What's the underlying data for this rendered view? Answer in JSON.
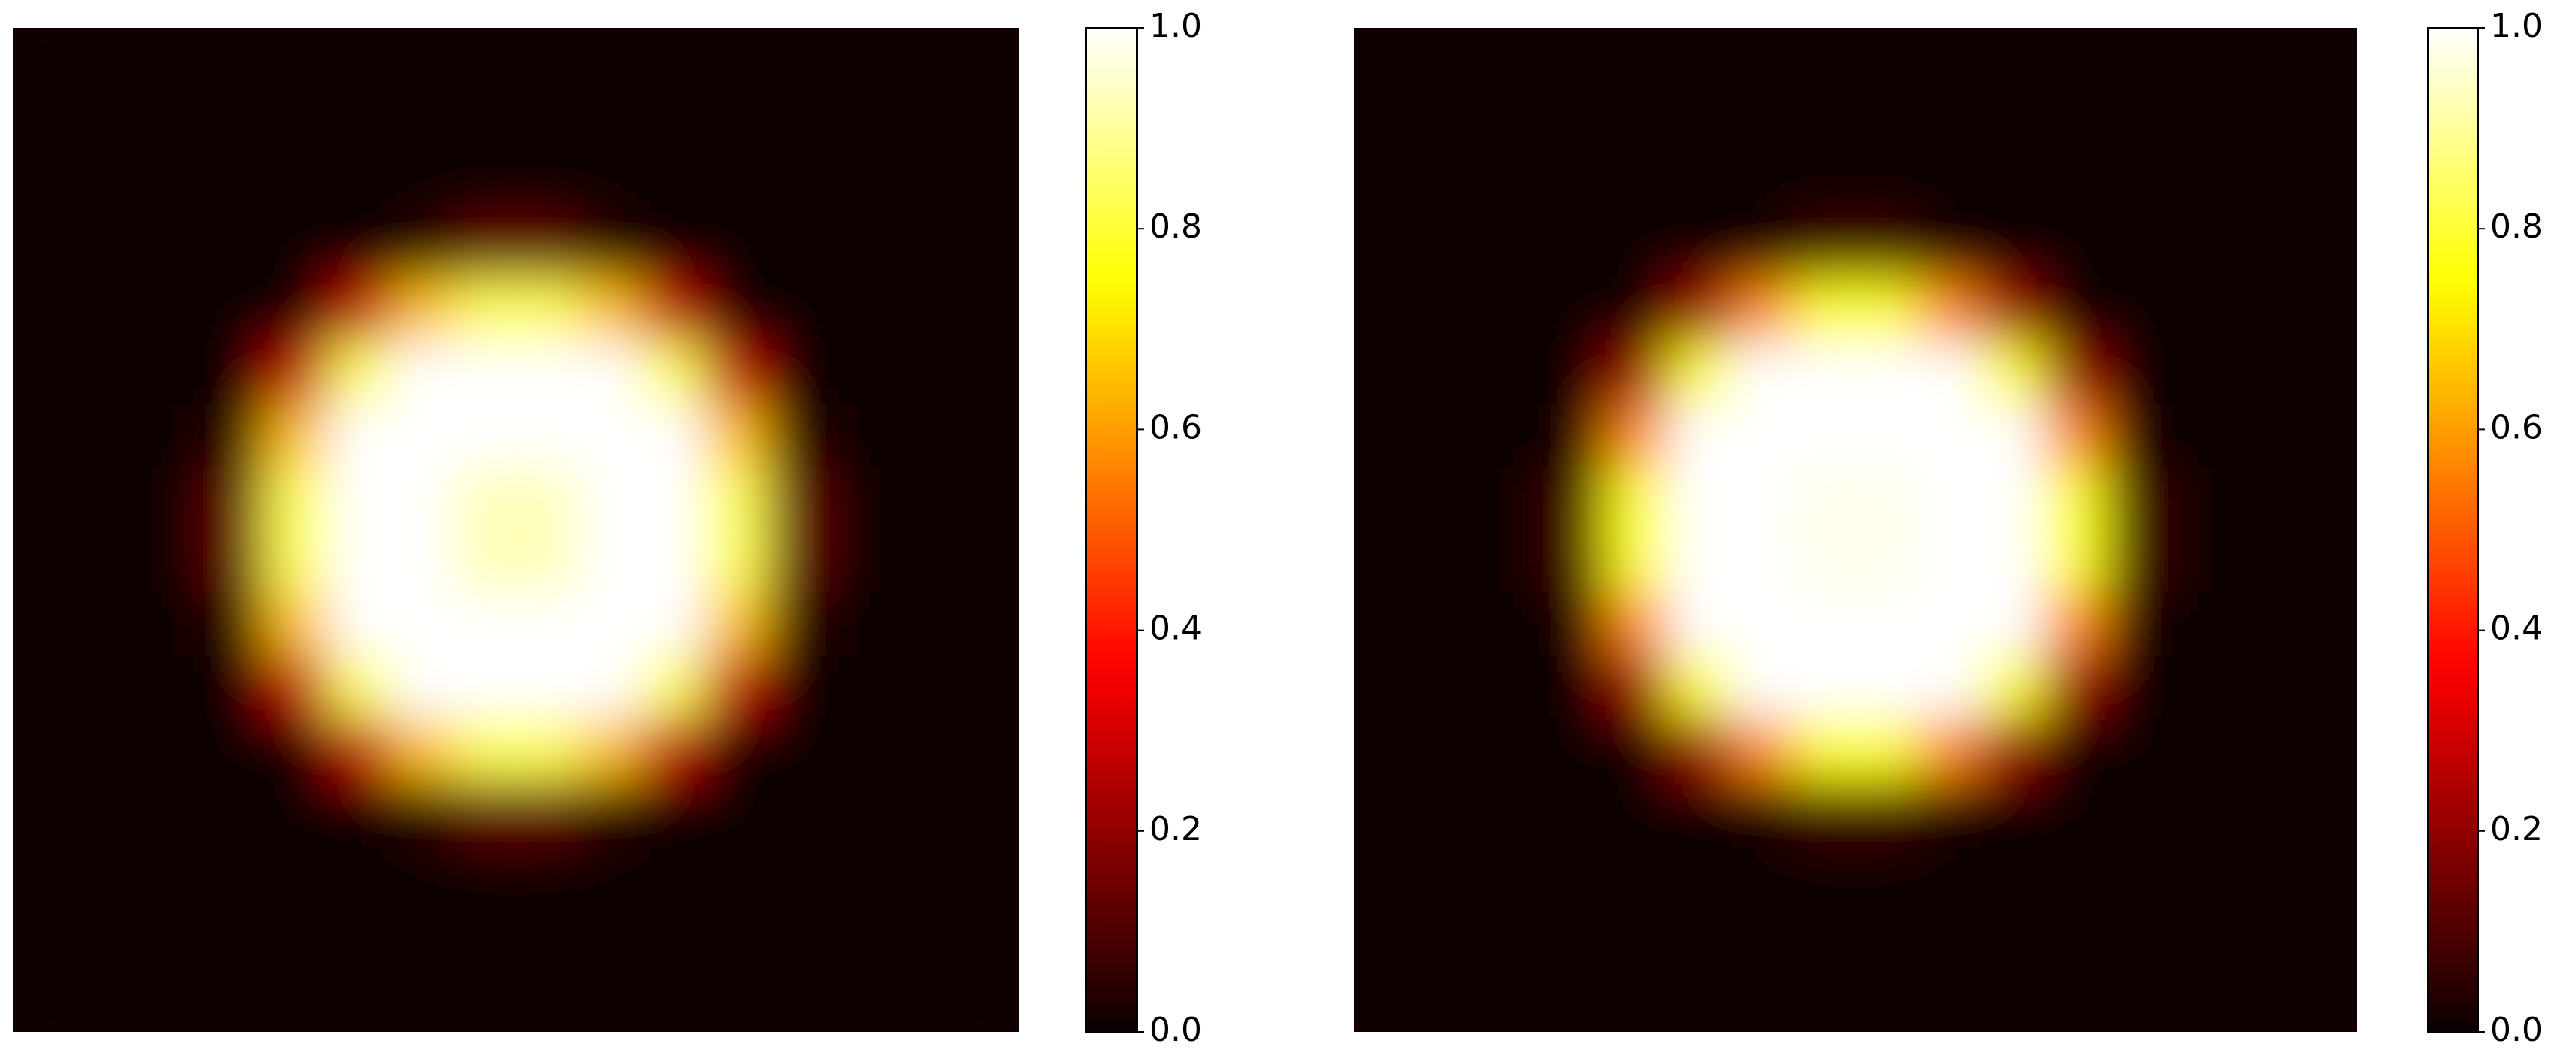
{
  "chart_data": [
    {
      "type": "heatmap",
      "colormap": "hot",
      "clim": [
        0,
        1
      ],
      "cticks": [
        {
          "value": 0,
          "label": "0.0"
        },
        0.2,
        0.4,
        0.6,
        0.8,
        {
          "value": 1,
          "label": "1.0"
        }
      ],
      "values": [
        [
          0,
          0,
          0,
          0,
          0,
          0,
          0,
          0,
          0,
          0,
          0,
          0,
          0,
          0,
          0,
          0
        ],
        [
          0,
          0,
          0,
          0,
          0,
          0,
          0,
          0,
          0,
          0,
          0,
          0,
          0,
          0,
          0,
          0
        ],
        [
          0,
          0,
          0,
          0,
          0,
          0,
          0,
          0,
          0,
          0,
          0,
          0,
          0,
          0,
          0,
          0
        ],
        [
          0,
          0,
          0,
          0,
          0,
          0,
          0.04,
          0.13,
          0.13,
          0.04,
          0,
          0,
          0,
          0,
          0,
          0
        ],
        [
          0,
          0,
          0,
          0,
          0.01,
          0.27,
          0.65,
          0.83,
          0.83,
          0.65,
          0.27,
          0.01,
          0,
          0,
          0,
          0
        ],
        [
          0,
          0,
          0,
          0,
          0.27,
          0.83,
          1,
          1,
          1,
          1,
          0.83,
          0.27,
          0,
          0,
          0,
          0
        ],
        [
          0,
          0,
          0,
          0.04,
          0.65,
          1,
          1,
          1,
          1,
          1,
          1,
          0.65,
          0.04,
          0,
          0,
          0
        ],
        [
          0,
          0,
          0,
          0.13,
          0.83,
          1,
          1,
          0.93,
          0.93,
          1,
          1,
          0.83,
          0.13,
          0,
          0,
          0
        ],
        [
          0,
          0,
          0,
          0.13,
          0.83,
          1,
          1,
          0.93,
          0.93,
          1,
          1,
          0.83,
          0.13,
          0,
          0,
          0
        ],
        [
          0,
          0,
          0,
          0.04,
          0.65,
          1,
          1,
          1,
          1,
          1,
          1,
          0.65,
          0.04,
          0,
          0,
          0
        ],
        [
          0,
          0,
          0,
          0,
          0.27,
          0.83,
          1,
          1,
          1,
          1,
          0.83,
          0.27,
          0,
          0,
          0,
          0
        ],
        [
          0,
          0,
          0,
          0,
          0.01,
          0.27,
          0.65,
          0.83,
          0.83,
          0.65,
          0.27,
          0.01,
          0,
          0,
          0,
          0
        ],
        [
          0,
          0,
          0,
          0,
          0,
          0,
          0.04,
          0.13,
          0.13,
          0.04,
          0,
          0,
          0,
          0,
          0,
          0
        ],
        [
          0,
          0,
          0,
          0,
          0,
          0,
          0,
          0,
          0,
          0,
          0,
          0,
          0,
          0,
          0,
          0
        ],
        [
          0,
          0,
          0,
          0,
          0,
          0,
          0,
          0,
          0,
          0,
          0,
          0,
          0,
          0,
          0,
          0
        ],
        [
          0,
          0,
          0,
          0,
          0,
          0,
          0,
          0,
          0,
          0,
          0,
          0,
          0,
          0,
          0,
          0
        ]
      ]
    },
    {
      "type": "heatmap",
      "colormap": "hot",
      "clim": [
        0,
        1
      ],
      "cticks": [
        {
          "value": 0,
          "label": "0.0"
        },
        0.2,
        0.4,
        0.6,
        0.8,
        {
          "value": 1,
          "label": "1.0"
        }
      ],
      "values": [
        [
          0,
          0,
          0,
          0,
          0,
          0,
          0,
          0,
          0,
          0,
          0,
          0,
          0,
          0,
          0,
          0
        ],
        [
          0,
          0,
          0,
          0,
          0,
          0,
          0,
          0,
          0,
          0,
          0,
          0,
          0,
          0,
          0,
          0
        ],
        [
          0,
          0,
          0,
          0,
          0,
          0,
          0,
          0,
          0,
          0,
          0,
          0,
          0,
          0,
          0,
          0
        ],
        [
          0,
          0,
          0,
          0,
          0,
          0,
          0.02,
          0.08,
          0.08,
          0.02,
          0,
          0,
          0,
          0,
          0,
          0
        ],
        [
          0,
          0,
          0,
          0,
          0,
          0.21,
          0.57,
          0.77,
          0.77,
          0.57,
          0.21,
          0,
          0,
          0,
          0,
          0
        ],
        [
          0,
          0,
          0,
          0,
          0.21,
          0.77,
          1,
          1,
          1,
          1,
          0.77,
          0.21,
          0,
          0,
          0,
          0
        ],
        [
          0,
          0,
          0,
          0.02,
          0.57,
          1,
          1,
          1,
          1,
          1,
          1,
          0.57,
          0.02,
          0,
          0,
          0
        ],
        [
          0,
          0,
          0,
          0.08,
          0.77,
          1,
          1,
          0.98,
          0.98,
          1,
          1,
          0.77,
          0.08,
          0,
          0,
          0
        ],
        [
          0,
          0,
          0,
          0.08,
          0.77,
          1,
          1,
          0.98,
          0.98,
          1,
          1,
          0.77,
          0.08,
          0,
          0,
          0
        ],
        [
          0,
          0,
          0,
          0.02,
          0.57,
          1,
          1,
          1,
          1,
          1,
          1,
          0.57,
          0.02,
          0,
          0,
          0
        ],
        [
          0,
          0,
          0,
          0,
          0.21,
          0.77,
          1,
          1,
          1,
          1,
          0.77,
          0.21,
          0,
          0,
          0,
          0
        ],
        [
          0,
          0,
          0,
          0,
          0,
          0.21,
          0.57,
          0.77,
          0.77,
          0.57,
          0.21,
          0,
          0,
          0,
          0,
          0
        ],
        [
          0,
          0,
          0,
          0,
          0,
          0,
          0.02,
          0.08,
          0.08,
          0.02,
          0,
          0,
          0,
          0,
          0,
          0
        ],
        [
          0,
          0,
          0,
          0,
          0,
          0,
          0,
          0,
          0,
          0,
          0,
          0,
          0,
          0,
          0,
          0
        ],
        [
          0,
          0,
          0,
          0,
          0,
          0,
          0,
          0,
          0,
          0,
          0,
          0,
          0,
          0,
          0,
          0
        ],
        [
          0,
          0,
          0,
          0,
          0,
          0,
          0,
          0,
          0,
          0,
          0,
          0,
          0,
          0,
          0,
          0
        ]
      ]
    }
  ]
}
